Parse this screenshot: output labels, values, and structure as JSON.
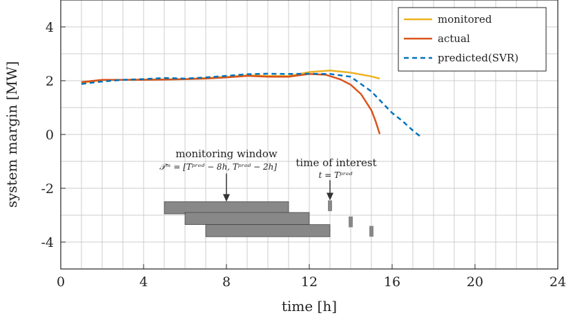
{
  "chart_data": {
    "type": "line",
    "xlabel": "time [h]",
    "ylabel": "system margin [MW]",
    "xlim": [
      0,
      24
    ],
    "ylim": [
      -5,
      5
    ],
    "xticks": [
      0,
      4,
      8,
      12,
      16,
      20,
      24
    ],
    "xtick_labels": [
      "0",
      "4",
      "8",
      "12",
      "16",
      "20",
      "24"
    ],
    "yticks": [
      4,
      2,
      0,
      -2,
      -4
    ],
    "ytick_labels": [
      "4",
      "2",
      "0",
      "-2",
      "-4"
    ],
    "x_minor_grid_step": 1,
    "y_minor_grid_step": 1,
    "grid": true,
    "legend_position": "top-right",
    "series": [
      {
        "name": "monitored",
        "color": "#EDB120",
        "style": "solid",
        "points": [
          [
            1,
            1.92
          ],
          [
            2,
            2.02
          ],
          [
            3,
            2.03
          ],
          [
            4,
            2.04
          ],
          [
            5,
            2.05
          ],
          [
            6,
            2.06
          ],
          [
            7,
            2.1
          ],
          [
            8,
            2.14
          ],
          [
            9,
            2.2
          ],
          [
            10,
            2.18
          ],
          [
            11,
            2.17
          ],
          [
            12,
            2.32
          ],
          [
            13,
            2.38
          ],
          [
            14,
            2.3
          ],
          [
            15,
            2.16
          ],
          [
            15.4,
            2.08
          ]
        ]
      },
      {
        "name": "actual",
        "color": "#D95319",
        "style": "solid",
        "points": [
          [
            1,
            1.95
          ],
          [
            2,
            2.03
          ],
          [
            3,
            2.03
          ],
          [
            4,
            2.03
          ],
          [
            5,
            2.04
          ],
          [
            6,
            2.06
          ],
          [
            7,
            2.08
          ],
          [
            8,
            2.12
          ],
          [
            9,
            2.18
          ],
          [
            10,
            2.15
          ],
          [
            11,
            2.15
          ],
          [
            12,
            2.25
          ],
          [
            12.8,
            2.22
          ],
          [
            13.5,
            2.05
          ],
          [
            14,
            1.85
          ],
          [
            14.5,
            1.5
          ],
          [
            15,
            0.9
          ],
          [
            15.2,
            0.5
          ],
          [
            15.4,
            0.02
          ]
        ]
      },
      {
        "name": "predicted(SVR)",
        "color": "#0072BD",
        "style": "dashed",
        "points": [
          [
            1,
            1.88
          ],
          [
            2,
            1.97
          ],
          [
            3,
            2.03
          ],
          [
            4,
            2.06
          ],
          [
            5,
            2.1
          ],
          [
            6,
            2.08
          ],
          [
            7,
            2.12
          ],
          [
            8,
            2.18
          ],
          [
            9,
            2.24
          ],
          [
            10,
            2.26
          ],
          [
            11,
            2.25
          ],
          [
            12,
            2.26
          ],
          [
            13,
            2.25
          ],
          [
            14,
            2.15
          ],
          [
            15,
            1.6
          ],
          [
            15.5,
            1.2
          ],
          [
            16,
            0.8
          ],
          [
            16.5,
            0.5
          ],
          [
            17,
            0.15
          ],
          [
            17.4,
            -0.1
          ]
        ]
      }
    ],
    "windows": [
      {
        "start": 5,
        "end": 11,
        "bottom": -2.95,
        "top": -2.5
      },
      {
        "start": 6,
        "end": 12,
        "bottom": -3.35,
        "top": -2.9
      },
      {
        "start": 7,
        "end": 13,
        "bottom": -3.8,
        "top": -3.35
      }
    ],
    "points_of_interest": [
      {
        "x": 13,
        "bottom": -2.85,
        "top": -2.45
      },
      {
        "x": 14,
        "bottom": -3.45,
        "top": -3.05
      },
      {
        "x": 15,
        "bottom": -3.8,
        "top": -3.4
      }
    ],
    "annotations": {
      "window_label": "monitoring window",
      "window_formula": "𝒯ᵐ = [Tᵖʳᵉᵈ − 8h, Tᵖʳᵉᵈ − 2h]",
      "window_arrow": {
        "x": 8,
        "from_y": -1.45,
        "to_y": -2.5
      },
      "interest_label": "time of interest",
      "interest_formula": "t = Tᵖʳᵉᵈ",
      "interest_arrow": {
        "x": 13,
        "from_y": -1.7,
        "to_y": -2.45
      }
    },
    "window_color": "#888888",
    "grid_color": "#cccccc"
  }
}
